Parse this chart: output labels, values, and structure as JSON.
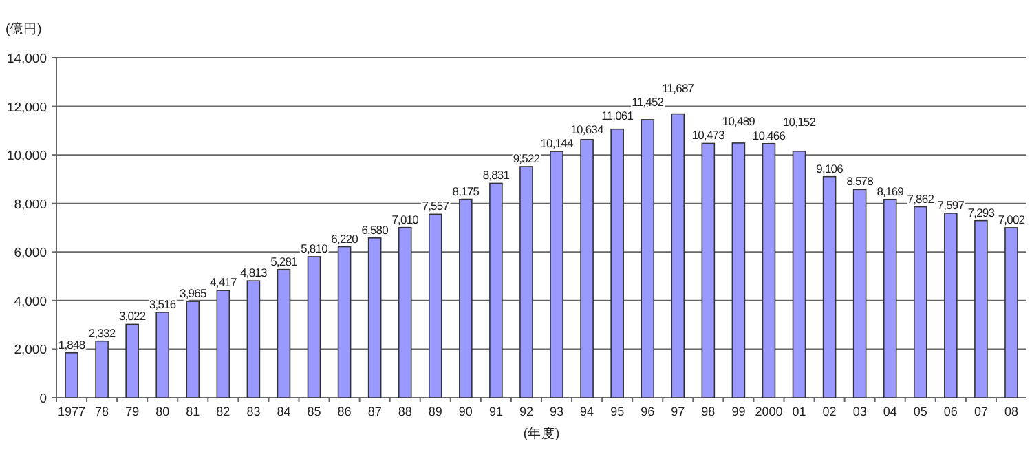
{
  "chart_data": {
    "type": "bar",
    "ylabel": "(億円)",
    "xlabel": "(年度)",
    "categories": [
      "1977",
      "78",
      "79",
      "80",
      "81",
      "82",
      "83",
      "84",
      "85",
      "86",
      "87",
      "88",
      "89",
      "90",
      "91",
      "92",
      "93",
      "94",
      "95",
      "96",
      "97",
      "98",
      "99",
      "2000",
      "01",
      "02",
      "03",
      "04",
      "05",
      "06",
      "07",
      "08"
    ],
    "values": [
      1848,
      2332,
      3022,
      3516,
      3965,
      4417,
      4813,
      5281,
      5810,
      6220,
      6580,
      7010,
      7557,
      8175,
      8831,
      9522,
      10144,
      10634,
      11061,
      11452,
      11687,
      10473,
      10489,
      10466,
      10152,
      9106,
      8578,
      8169,
      7862,
      7597,
      7293,
      7002
    ],
    "color": "#9999ff",
    "ylim": [
      0,
      14000
    ],
    "yticks": [
      {
        "value": 0,
        "label": "0"
      },
      {
        "value": 2000,
        "label": "2,000"
      },
      {
        "value": 4000,
        "label": "4,000"
      },
      {
        "value": 6000,
        "label": "6,000"
      },
      {
        "value": 8000,
        "label": "8,000"
      },
      {
        "value": 10000,
        "label": "10,000"
      },
      {
        "value": 12000,
        "label": "12,000"
      },
      {
        "value": 14000,
        "label": "14,000"
      }
    ],
    "value_labels": [
      "1,848",
      "2,332",
      "3,022",
      "3,516",
      "3,965",
      "4,417",
      "4,813",
      "5,281",
      "5,810",
      "6,220",
      "6,580",
      "7,010",
      "7,557",
      "8,175",
      "8,831",
      "9,522",
      "10,144",
      "10,634",
      "11,061",
      "11,452",
      "11,687",
      "10,473",
      "10,489",
      "10,466",
      "10,152",
      "9,106",
      "8,578",
      "8,169",
      "7,862",
      "7,597",
      "7,293",
      "7,002"
    ],
    "grid": "y"
  }
}
